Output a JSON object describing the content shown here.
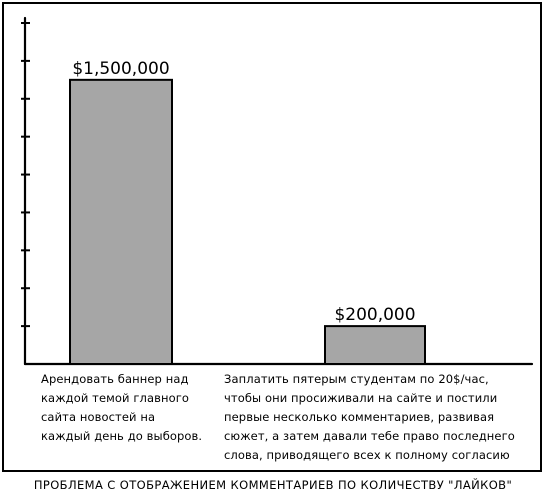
{
  "chart_data": {
    "type": "bar",
    "categories": [
      "Арендовать баннер над\nкаждой темой главного\nсайта новостей на\nкаждый день до выборов.",
      "Заплатить пятерым студентам по 20$/час,\nчтобы они просиживали на сайте и постили\nпервые несколько комментариев, развивая\nсюжет, а затем давали тебе право последнего\nслова, приводящего всех к полному согласию"
    ],
    "values": [
      1500000,
      200000
    ],
    "value_labels": [
      "$1,500,000",
      "$200,000"
    ],
    "title": "",
    "xlabel": "",
    "ylabel": "",
    "ylim": [
      0,
      1800000
    ],
    "bar_color": "#a6a6a6",
    "grid": false,
    "legend": "none"
  },
  "caption": "ПРОБЛЕМА С ОТОБРАЖЕНИЕМ КОММЕНТАРИЕВ ПО КОЛИЧЕСТВУ \"ЛАЙКОВ\""
}
